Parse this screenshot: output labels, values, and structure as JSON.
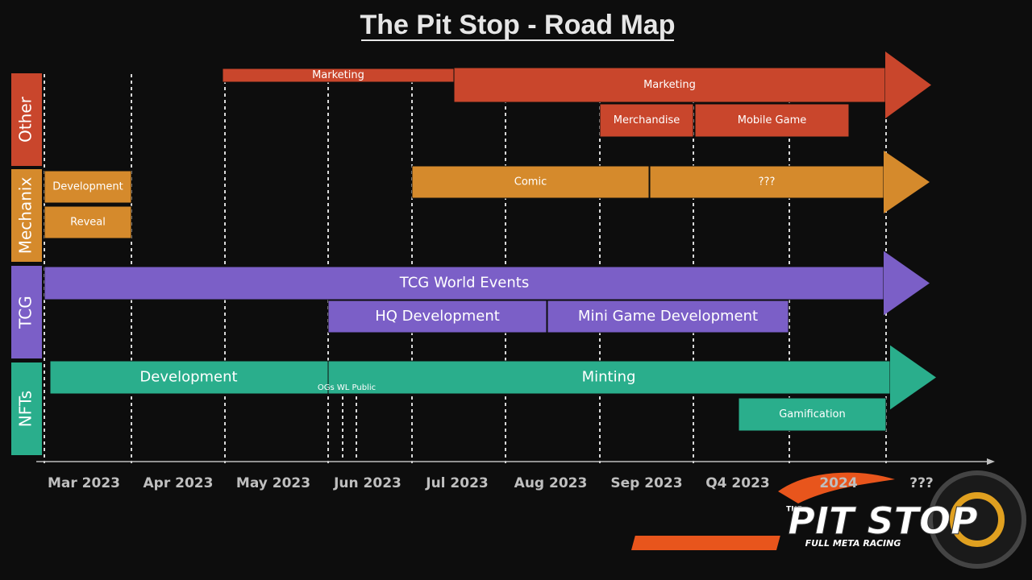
{
  "title": "The Pit Stop - Road Map",
  "lanes": [
    {
      "name": "Other",
      "bars": [
        "Marketing",
        "Marketing",
        "Merchandise",
        "Mobile Game"
      ]
    },
    {
      "name": "Mechanix",
      "bars": [
        "Development",
        "Reveal",
        "Comic",
        "???"
      ]
    },
    {
      "name": "TCG",
      "bars": [
        "TCG World Events",
        "HQ Development",
        "Mini Game Development"
      ]
    },
    {
      "name": "NFTs",
      "bars": [
        "Development",
        "Minting",
        "Gamification"
      ]
    }
  ],
  "nft_phase_note": "OGs WL Public",
  "timeline": [
    "Mar 2023",
    "Apr 2023",
    "May 2023",
    "Jun 2023",
    "Jul 2023",
    "Aug 2023",
    "Sep 2023",
    "Q4 2023",
    "2024",
    "???"
  ],
  "logo": {
    "top": "THE",
    "main": "PIT STOP",
    "sub": "FULL META RACING"
  }
}
